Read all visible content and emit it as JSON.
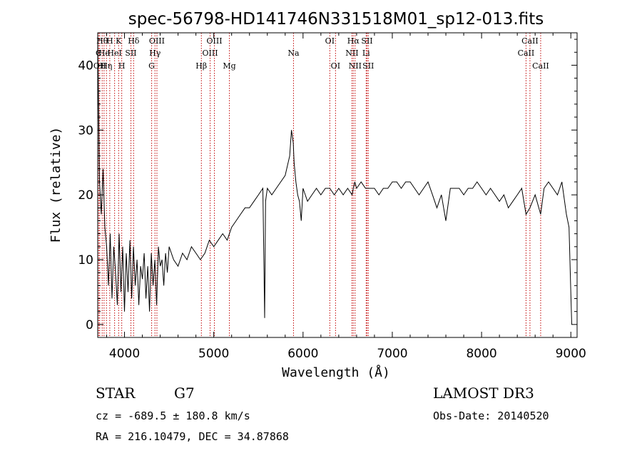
{
  "chart_data": {
    "type": "line",
    "title": "spec-56798-HD141746N331518M01_sp12-013.fits",
    "xlabel": "Wavelength (Å)",
    "ylabel": "Flux (relative)",
    "xlim": [
      3700,
      9070
    ],
    "ylim": [
      -2,
      45
    ],
    "x_ticks": [
      4000,
      5000,
      6000,
      7000,
      8000,
      9000
    ],
    "y_ticks": [
      0,
      10,
      20,
      30,
      40
    ],
    "grid": false,
    "series": [
      {
        "x": [
          3700,
          3720,
          3740,
          3760,
          3780,
          3800,
          3820,
          3840,
          3860,
          3880,
          3900,
          3920,
          3940,
          3960,
          3980,
          4000,
          4020,
          4040,
          4060,
          4080,
          4100,
          4120,
          4140,
          4160,
          4180,
          4200,
          4220,
          4240,
          4260,
          4280,
          4300,
          4320,
          4340,
          4360,
          4380,
          4400,
          4420,
          4440,
          4460,
          4480,
          4500,
          4550,
          4600,
          4650,
          4700,
          4750,
          4800,
          4850,
          4900,
          4950,
          5000,
          5050,
          5100,
          5150,
          5200,
          5250,
          5300,
          5350,
          5400,
          5450,
          5500,
          5550,
          5570,
          5580,
          5590,
          5600,
          5650,
          5700,
          5750,
          5800,
          5850,
          5870,
          5890,
          5900,
          5920,
          5940,
          5960,
          5980,
          6000,
          6050,
          6100,
          6150,
          6200,
          6250,
          6300,
          6350,
          6400,
          6450,
          6500,
          6550,
          6563,
          6580,
          6600,
          6650,
          6700,
          6750,
          6800,
          6850,
          6900,
          6950,
          7000,
          7050,
          7100,
          7150,
          7200,
          7250,
          7300,
          7350,
          7400,
          7450,
          7500,
          7550,
          7600,
          7650,
          7700,
          7750,
          7800,
          7850,
          7900,
          7950,
          8000,
          8050,
          8100,
          8150,
          8200,
          8250,
          8300,
          8350,
          8400,
          8450,
          8498,
          8542,
          8600,
          8662,
          8700,
          8750,
          8800,
          8850,
          8900,
          8950,
          8980,
          9000,
          9010
        ],
        "y": [
          44,
          22,
          17,
          24,
          15,
          12,
          6,
          14,
          4,
          12,
          8,
          3,
          14,
          5,
          12,
          2,
          11,
          5,
          13,
          4,
          12,
          6,
          10,
          3,
          9,
          7,
          11,
          4,
          9,
          2,
          11,
          6,
          10,
          3,
          12,
          9,
          10,
          6,
          11,
          8,
          12,
          10,
          9,
          11,
          10,
          12,
          11,
          10,
          11,
          13,
          12,
          13,
          14,
          13,
          15,
          16,
          17,
          18,
          18,
          19,
          20,
          21,
          1,
          19,
          20,
          21,
          20,
          21,
          22,
          23,
          26,
          30,
          28,
          25,
          22,
          20,
          19,
          16,
          21,
          19,
          20,
          21,
          20,
          21,
          21,
          20,
          21,
          20,
          21,
          20,
          21,
          22,
          21,
          22,
          21,
          21,
          21,
          20,
          21,
          21,
          22,
          22,
          21,
          22,
          22,
          21,
          20,
          21,
          22,
          20,
          18,
          20,
          16,
          21,
          21,
          21,
          20,
          21,
          21,
          22,
          21,
          20,
          21,
          20,
          19,
          20,
          18,
          19,
          20,
          21,
          17,
          18,
          20,
          17,
          21,
          22,
          21,
          20,
          22,
          17,
          15,
          5,
          0
        ]
      }
    ],
    "lines": [
      {
        "x": 3710,
        "label": "C",
        "row": 1
      },
      {
        "x": 3722,
        "label": "OII",
        "row": 2
      },
      {
        "x": 3750,
        "label": "Hθ",
        "row": 0
      },
      {
        "x": 3771,
        "label": "He",
        "row": 1
      },
      {
        "x": 3798,
        "label": "Hη",
        "row": 2
      },
      {
        "x": 3835,
        "label": "H",
        "row": 0
      },
      {
        "x": 3889,
        "label": "HeI",
        "row": 1
      },
      {
        "x": 3934,
        "label": "K",
        "row": 0
      },
      {
        "x": 3969,
        "label": "H",
        "row": 2
      },
      {
        "x": 4072,
        "label": "SII",
        "row": 1
      },
      {
        "x": 4102,
        "label": "Hδ",
        "row": 0
      },
      {
        "x": 4304,
        "label": "G",
        "row": 2
      },
      {
        "x": 4341,
        "label": "Hγ",
        "row": 1
      },
      {
        "x": 4363,
        "label": "OIII",
        "row": 0
      },
      {
        "x": 4861,
        "label": "Hβ",
        "row": 2
      },
      {
        "x": 4959,
        "label": "OIII",
        "row": 1
      },
      {
        "x": 5007,
        "label": "OIII",
        "row": 0
      },
      {
        "x": 5175,
        "label": "Mg",
        "row": 2
      },
      {
        "x": 5893,
        "label": "Na",
        "row": 1
      },
      {
        "x": 6300,
        "label": "OI",
        "row": 0
      },
      {
        "x": 6364,
        "label": "OI",
        "row": 2
      },
      {
        "x": 6548,
        "label": "NII",
        "row": 1
      },
      {
        "x": 6563,
        "label": "Hα",
        "row": 0
      },
      {
        "x": 6583,
        "label": "NII",
        "row": 2
      },
      {
        "x": 6707,
        "label": "Li",
        "row": 1
      },
      {
        "x": 6717,
        "label": "SII",
        "row": 0
      },
      {
        "x": 6731,
        "label": "SII",
        "row": 2
      },
      {
        "x": 8498,
        "label": "CaII",
        "row": 1
      },
      {
        "x": 8542,
        "label": "CaII",
        "row": 0
      },
      {
        "x": 8662,
        "label": "CaII",
        "row": 2
      }
    ]
  },
  "info": {
    "class": "STAR",
    "subclass": "G7",
    "survey": "LAMOST DR3",
    "cz": "cz = -689.5 ± 180.8 km/s",
    "obs_date": "Obs-Date: 20140520",
    "coords": "RA = 216.10479, DEC =  34.87868"
  }
}
